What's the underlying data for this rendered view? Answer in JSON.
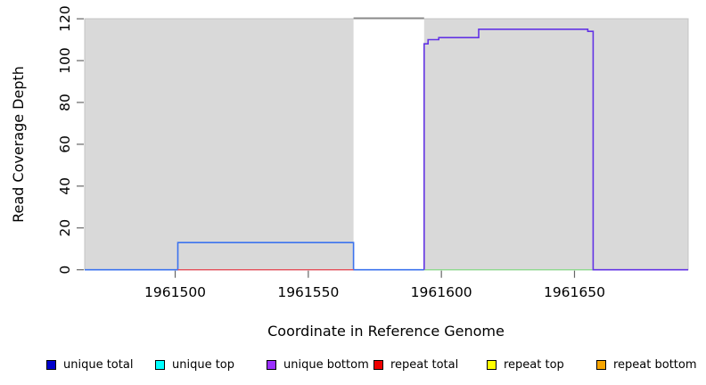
{
  "chart_data": {
    "type": "line",
    "title": "",
    "xlabel": "Coordinate in Reference Genome",
    "ylabel": "Read Coverage Depth",
    "xlim": [
      1961466,
      1961692.7
    ],
    "ylim": [
      0,
      120.03
    ],
    "grid": false,
    "x_ticks": [
      1961500,
      1961550,
      1961600,
      1961650
    ],
    "x_tick_labels": [
      "1961500",
      "1961550",
      "1961600",
      "1961650"
    ],
    "y_ticks": [
      0,
      20,
      40,
      60,
      80,
      100,
      120
    ],
    "y_tick_labels": [
      "0",
      "20",
      "40",
      "60",
      "80",
      "100",
      "120"
    ],
    "background": {
      "plot_bg": "#d9d9d9",
      "plot_border": "#c4c4c4",
      "highlight_band": {
        "x_start": 1961567,
        "x_end": 1961593.5,
        "fill": "#ffffff",
        "top_border": "#8a8a8a"
      }
    },
    "series": [
      {
        "name": "unique total (visible step, height 13)",
        "color": "#3c73ee",
        "width": 1.6,
        "points": [
          [
            1961466,
            0
          ],
          [
            1961501,
            0
          ],
          [
            1961501,
            13
          ],
          [
            1961567,
            13
          ],
          [
            1961567,
            0
          ],
          [
            1961593.5,
            0
          ]
        ]
      },
      {
        "name": "repeat total (visible baseline segment)",
        "color": "#e4505a",
        "width": 1.4,
        "points": [
          [
            1961501,
            0
          ],
          [
            1961567,
            0
          ]
        ]
      },
      {
        "name": "unlabeled light-green baseline segment",
        "color": "#8fd98f",
        "width": 1.4,
        "points": [
          [
            1961593.5,
            0
          ],
          [
            1961657,
            0
          ]
        ]
      },
      {
        "name": "unique bottom (step plateau)",
        "color": "#6334e4",
        "width": 1.6,
        "points": [
          [
            1961593.5,
            0
          ],
          [
            1961593.5,
            108
          ],
          [
            1961595,
            108
          ],
          [
            1961595,
            110
          ],
          [
            1961599,
            110
          ],
          [
            1961599,
            111
          ],
          [
            1961614,
            111
          ],
          [
            1961614,
            115
          ],
          [
            1961655,
            115
          ],
          [
            1961655,
            114
          ],
          [
            1961657,
            114
          ],
          [
            1961657,
            0
          ],
          [
            1961692.7,
            0
          ]
        ]
      }
    ],
    "legend_position": "bottom"
  },
  "legend": {
    "items": [
      {
        "label": "unique total",
        "color": "#0000cc"
      },
      {
        "label": "unique top",
        "color": "#00ffff"
      },
      {
        "label": "unique bottom",
        "color": "#9b30ff"
      },
      {
        "label": "repeat total",
        "color": "#ee0000"
      },
      {
        "label": "repeat top",
        "color": "#ffff00"
      },
      {
        "label": "repeat bottom",
        "color": "#f7a500"
      }
    ]
  }
}
